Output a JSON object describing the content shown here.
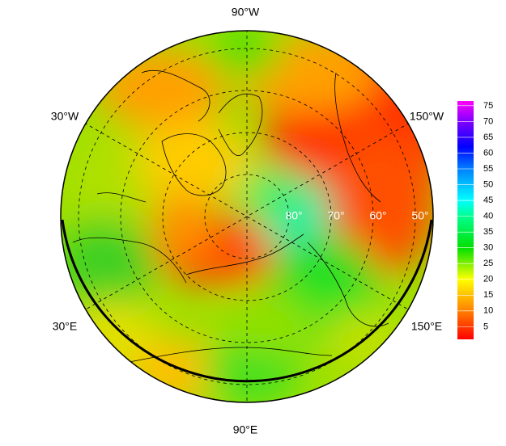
{
  "map": {
    "longitude_labels": [
      "90°W",
      "30°W",
      "150°W",
      "30°E",
      "150°E",
      "90°E"
    ],
    "latitude_labels": [
      "80°",
      "70°",
      "60°",
      "50°"
    ],
    "colorbar": {
      "lim": [
        1,
        76.5
      ],
      "ticks": [
        5,
        10,
        15,
        20,
        25,
        30,
        35,
        40,
        45,
        50,
        55,
        60,
        65,
        70,
        75
      ],
      "stops": [
        {
          "value": 1,
          "color": "#ff0000"
        },
        {
          "value": 10,
          "color": "#ff8000"
        },
        {
          "value": 20,
          "color": "#ffff00"
        },
        {
          "value": 30,
          "color": "#00e000"
        },
        {
          "value": 40,
          "color": "#00ff90"
        },
        {
          "value": 45,
          "color": "#00ffff"
        },
        {
          "value": 55,
          "color": "#0080ff"
        },
        {
          "value": 62,
          "color": "#0000ff"
        },
        {
          "value": 70,
          "color": "#8000ff"
        },
        {
          "value": 76.5,
          "color": "#ff00ff"
        }
      ]
    }
  }
}
